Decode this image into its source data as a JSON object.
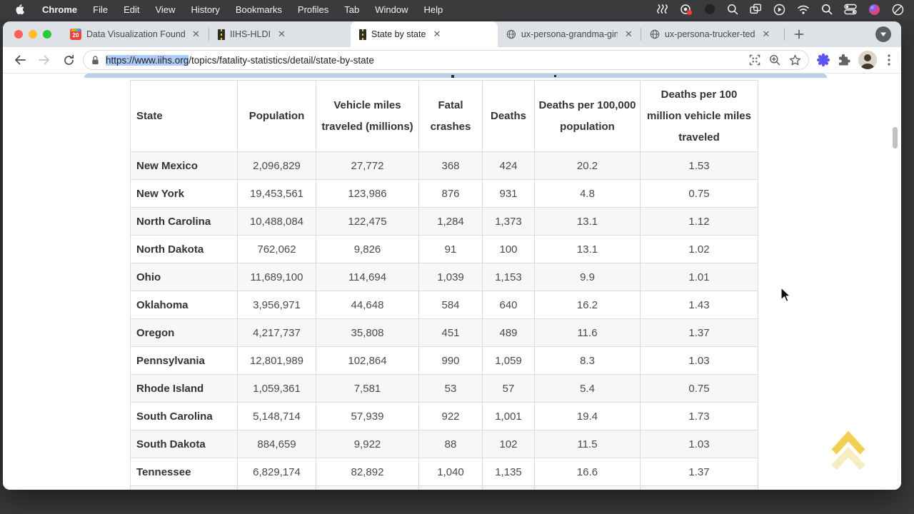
{
  "menu_bar": {
    "items": [
      "Chrome",
      "File",
      "Edit",
      "View",
      "History",
      "Bookmarks",
      "Profiles",
      "Tab",
      "Window",
      "Help"
    ],
    "status_icons": [
      "waveform-icon",
      "screen-record-badge-icon",
      "dark-dot-icon",
      "zoom-loupe-icon",
      "windows-stack-icon",
      "play-circle-icon",
      "wifi-icon",
      "spotlight-search-icon",
      "control-center-icon",
      "assistant-swirl-icon",
      "do-not-disturb-icon"
    ]
  },
  "tabs": [
    {
      "label": "Data Visualization Founda",
      "favicon": "calendar-20-icon",
      "active": false
    },
    {
      "label": "IIHS-HLDI",
      "favicon": "road-icon",
      "active": false
    },
    {
      "label": "State by state",
      "favicon": "road-icon",
      "active": true
    },
    {
      "label": "ux-persona-grandma-gin",
      "favicon": "globe-icon",
      "active": false
    },
    {
      "label": "ux-persona-trucker-ted",
      "favicon": "globe-icon",
      "active": false
    }
  ],
  "toolbar": {
    "url_selected": "https://www.iihs.org",
    "url_rest": "/topics/fatality-statistics/detail/state-by-state"
  },
  "table": {
    "columns": [
      "State",
      "Population",
      "Vehicle miles traveled (millions)",
      "Fatal crashes",
      "Deaths",
      "Deaths per 100,000 population",
      "Deaths per 100 million vehicle miles traveled"
    ],
    "rows": [
      [
        "New Mexico",
        "2,096,829",
        "27,772",
        "368",
        "424",
        "20.2",
        "1.53"
      ],
      [
        "New York",
        "19,453,561",
        "123,986",
        "876",
        "931",
        "4.8",
        "0.75"
      ],
      [
        "North Carolina",
        "10,488,084",
        "122,475",
        "1,284",
        "1,373",
        "13.1",
        "1.12"
      ],
      [
        "North Dakota",
        "762,062",
        "9,826",
        "91",
        "100",
        "13.1",
        "1.02"
      ],
      [
        "Ohio",
        "11,689,100",
        "114,694",
        "1,039",
        "1,153",
        "9.9",
        "1.01"
      ],
      [
        "Oklahoma",
        "3,956,971",
        "44,648",
        "584",
        "640",
        "16.2",
        "1.43"
      ],
      [
        "Oregon",
        "4,217,737",
        "35,808",
        "451",
        "489",
        "11.6",
        "1.37"
      ],
      [
        "Pennsylvania",
        "12,801,989",
        "102,864",
        "990",
        "1,059",
        "8.3",
        "1.03"
      ],
      [
        "Rhode Island",
        "1,059,361",
        "7,581",
        "53",
        "57",
        "5.4",
        "0.75"
      ],
      [
        "South Carolina",
        "5,148,714",
        "57,939",
        "922",
        "1,001",
        "19.4",
        "1.73"
      ],
      [
        "South Dakota",
        "884,659",
        "9,922",
        "88",
        "102",
        "11.5",
        "1.03"
      ],
      [
        "Tennessee",
        "6,829,174",
        "82,892",
        "1,040",
        "1,135",
        "16.6",
        "1.37"
      ]
    ]
  },
  "colors": {
    "selection_highlight": "#aecbfa",
    "menu_bar_bg": "#3b3b3d",
    "tab_strip_bg": "#dee1e6",
    "row_stripe": "#f7f7f7",
    "table_border": "#dcdcdc",
    "back_to_top_yellow": "#f0cf52"
  }
}
